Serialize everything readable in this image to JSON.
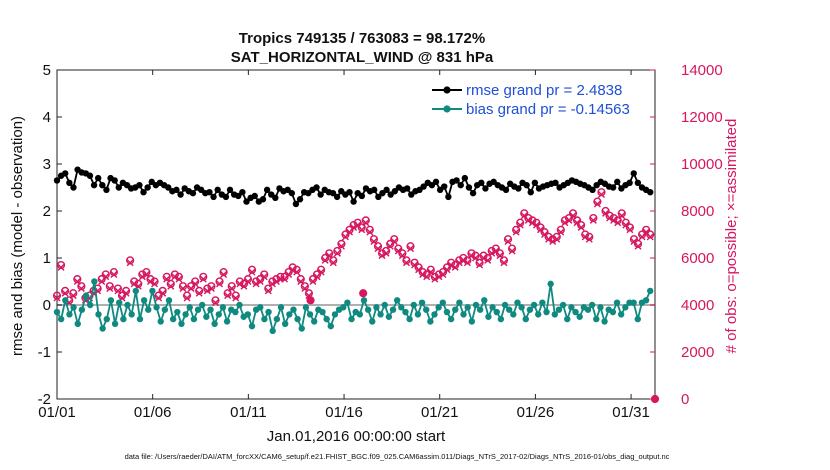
{
  "chart_data": {
    "type": "line",
    "title_line1": "Tropics 749135 / 763083 = 98.172%",
    "title_line2": "SAT_HORIZONTAL_WIND @ 831 hPa",
    "xlabel": "Jan.01,2016 00:00:00 start",
    "ylabel_left": "rmse and bias (model - observation)",
    "ylabel_right": "# of obs: o=possible; ×=assimilated",
    "footer": "data file: /Users/raeder/DAI/ATM_forcXX/CAM6_setup/f.e21.FHIST_BGC.f09_025.CAM6assim.011/Diags_NTrS_2017-02/Diags_NTrS_2016-01/obs_diag_output.nc",
    "x_tick_labels": [
      "01/01",
      "01/06",
      "01/11",
      "01/16",
      "01/21",
      "01/26",
      "01/31"
    ],
    "x_tick_days": [
      0,
      5,
      10,
      15,
      20,
      25,
      30
    ],
    "xlim": [
      0,
      31.25
    ],
    "ylim_left": [
      -2,
      5
    ],
    "left_ticks": [
      "-2",
      "-1",
      "0",
      "1",
      "2",
      "3",
      "4",
      "5"
    ],
    "ylim_right": [
      0,
      14000
    ],
    "right_ticks": [
      "0",
      "2000",
      "4000",
      "6000",
      "8000",
      "10000",
      "12000",
      "14000"
    ],
    "legend": {
      "rmse": "rmse grand pr = 2.4838",
      "bias": "bias grand pr = -0.14563"
    },
    "colors": {
      "rmse": "#000000",
      "bias": "#0f8a80",
      "obs": "#d6175f",
      "zero_line": "#b0b0b0"
    },
    "series": [
      {
        "name": "rmse",
        "values": [
          2.65,
          2.75,
          2.8,
          2.6,
          2.5,
          2.88,
          2.82,
          2.8,
          2.75,
          2.55,
          2.7,
          2.55,
          2.45,
          2.7,
          2.65,
          2.5,
          2.6,
          2.55,
          2.48,
          2.5,
          2.55,
          2.4,
          2.5,
          2.62,
          2.55,
          2.6,
          2.55,
          2.5,
          2.42,
          2.45,
          2.35,
          2.48,
          2.42,
          2.38,
          2.5,
          2.45,
          2.38,
          2.4,
          2.3,
          2.45,
          2.35,
          2.3,
          2.45,
          2.35,
          2.32,
          2.4,
          2.2,
          2.28,
          2.32,
          2.2,
          2.25,
          2.45,
          2.35,
          2.28,
          2.48,
          2.42,
          2.45,
          2.38,
          2.15,
          2.25,
          2.4,
          2.38,
          2.45,
          2.5,
          2.35,
          2.45,
          2.4,
          2.38,
          2.3,
          2.42,
          2.35,
          2.4,
          2.2,
          2.38,
          2.32,
          2.48,
          2.42,
          2.45,
          2.3,
          2.38,
          2.45,
          2.35,
          2.42,
          2.5,
          2.45,
          2.48,
          2.35,
          2.42,
          2.45,
          2.52,
          2.6,
          2.55,
          2.62,
          2.45,
          2.52,
          2.3,
          2.62,
          2.65,
          2.55,
          2.7,
          2.5,
          2.38,
          2.55,
          2.6,
          2.48,
          2.58,
          2.62,
          2.55,
          2.5,
          2.45,
          2.58,
          2.52,
          2.48,
          2.6,
          2.55,
          2.4,
          2.6,
          2.48,
          2.52,
          2.55,
          2.58,
          2.6,
          2.5,
          2.55,
          2.6,
          2.65,
          2.62,
          2.58,
          2.55,
          2.5,
          2.45,
          2.55,
          2.62,
          2.58,
          2.52,
          2.5,
          2.62,
          2.48,
          2.55,
          2.6,
          2.8,
          2.6,
          2.5,
          2.45,
          2.4
        ]
      },
      {
        "name": "bias",
        "values": [
          -0.15,
          -0.3,
          0.1,
          -0.2,
          -0.05,
          -0.4,
          -0.1,
          0.2,
          0.0,
          0.5,
          -0.2,
          -0.5,
          -0.3,
          0.1,
          -0.4,
          0.05,
          -0.3,
          0.0,
          -0.2,
          0.3,
          -0.3,
          0.1,
          -0.1,
          0.3,
          -0.05,
          -0.35,
          -0.1,
          0.1,
          -0.3,
          -0.15,
          -0.4,
          -0.2,
          -0.05,
          -0.3,
          -0.1,
          0.0,
          -0.25,
          -0.1,
          -0.4,
          -0.2,
          -0.05,
          -0.35,
          -0.1,
          -0.15,
          0.0,
          -0.25,
          -0.2,
          -0.45,
          -0.1,
          -0.05,
          -0.3,
          -0.15,
          -0.55,
          -0.3,
          -0.05,
          -0.4,
          -0.2,
          -0.1,
          -0.3,
          -0.5,
          -0.05,
          -0.2,
          -0.35,
          -0.1,
          -0.15,
          -0.3,
          -0.45,
          -0.2,
          -0.1,
          -0.05,
          0.05,
          -0.3,
          -0.15,
          -0.2,
          0.1,
          -0.1,
          -0.35,
          -0.05,
          -0.2,
          0.0,
          -0.25,
          -0.1,
          0.1,
          -0.05,
          -0.15,
          -0.3,
          0.0,
          -0.2,
          0.05,
          -0.1,
          -0.35,
          -0.2,
          -0.05,
          0.05,
          -0.15,
          -0.3,
          -0.1,
          0.05,
          -0.2,
          -0.05,
          -0.35,
          0.0,
          -0.1,
          0.1,
          -0.25,
          -0.05,
          -0.15,
          -0.3,
          0.0,
          -0.1,
          -0.2,
          0.05,
          -0.05,
          -0.3,
          -0.1,
          0.0,
          -0.2,
          0.05,
          -0.15,
          0.45,
          -0.2,
          -0.1,
          0.0,
          -0.3,
          -0.05,
          -0.15,
          -0.25,
          -0.05,
          -0.1,
          0.0,
          -0.3,
          -0.05,
          -0.35,
          -0.1,
          -0.15,
          0.05,
          -0.2,
          -0.05,
          0.05,
          0.05,
          -0.3,
          0.05,
          0.1,
          0.3
        ]
      },
      {
        "name": "obs_possible",
        "values": [
          4400,
          5700,
          4600,
          4200,
          4500,
          5100,
          4800,
          4300,
          4400,
          4600,
          4700,
          5100,
          5300,
          4800,
          5400,
          4700,
          4400,
          4600,
          5900,
          5000,
          4900,
          5300,
          5400,
          5100,
          5000,
          4400,
          4600,
          5200,
          4900,
          5300,
          5200,
          4800,
          4400,
          4800,
          5000,
          4600,
          5200,
          4700,
          4800,
          4200,
          5000,
          5400,
          4500,
          4800,
          4400,
          5000,
          4900,
          5100,
          5500,
          5000,
          5100,
          5300,
          4700,
          5000,
          5100,
          5200,
          5200,
          5400,
          5600,
          5500,
          5100,
          4800,
          4500,
          5100,
          5300,
          5500,
          6000,
          6200,
          5900,
          6300,
          6600,
          7000,
          7200,
          7400,
          7500,
          7300,
          7600,
          7200,
          6800,
          6500,
          6200,
          6300,
          6600,
          6800,
          6400,
          6200,
          5900,
          6500,
          5800,
          5600,
          5400,
          5300,
          5500,
          5200,
          5300,
          5400,
          5600,
          5800,
          5700,
          5900,
          6000,
          5900,
          6200,
          6100,
          5800,
          6100,
          6000,
          6300,
          6400,
          6200,
          5900,
          6800,
          6400,
          7200,
          7500,
          7900,
          7700,
          7600,
          7500,
          7300,
          7100,
          6900,
          6800,
          6900,
          7200,
          7600,
          7700,
          7900,
          7600,
          7400,
          7000,
          6900,
          7700,
          8400,
          8800,
          8000,
          7800,
          7700,
          7600,
          7900,
          7500,
          7300,
          6800,
          6600,
          7000,
          7200,
          7000
        ]
      },
      {
        "name": "obs_assimilated",
        "values": [
          4300,
          5600,
          4500,
          4100,
          4400,
          5000,
          4700,
          4200,
          4300,
          4500,
          4600,
          5000,
          5200,
          4700,
          5300,
          4600,
          4300,
          4500,
          5800,
          4900,
          4800,
          5200,
          5300,
          5000,
          4900,
          4300,
          4500,
          5100,
          4800,
          5200,
          5100,
          4700,
          4300,
          4700,
          4900,
          4500,
          5100,
          4600,
          4700,
          4100,
          4900,
          5300,
          4400,
          4700,
          4300,
          4900,
          4800,
          5000,
          5400,
          4900,
          5000,
          5200,
          4600,
          4900,
          5000,
          5100,
          5100,
          5300,
          5500,
          5400,
          5000,
          4700,
          4400,
          5000,
          5200,
          5400,
          5900,
          6100,
          5800,
          6200,
          6500,
          6900,
          7100,
          7300,
          7400,
          7200,
          7500,
          7100,
          6700,
          6400,
          6100,
          6200,
          6500,
          6700,
          6300,
          6100,
          5800,
          6400,
          5700,
          5500,
          5300,
          5200,
          5400,
          5100,
          5200,
          5300,
          5500,
          5700,
          5600,
          5800,
          5900,
          5800,
          6100,
          6000,
          5700,
          6000,
          5900,
          6200,
          6300,
          6100,
          5800,
          6700,
          6300,
          7100,
          7400,
          7800,
          7600,
          7500,
          7400,
          7200,
          7000,
          6800,
          6700,
          6800,
          7100,
          7500,
          7600,
          7800,
          7500,
          7300,
          6900,
          6800,
          7600,
          8300,
          8700,
          7900,
          7700,
          7600,
          7500,
          7800,
          7400,
          7200,
          6700,
          6500,
          6900,
          7100,
          6900
        ]
      }
    ],
    "outlier_points": [
      {
        "series": "obs_possible",
        "day": 31.25,
        "value": 0
      },
      {
        "series": "obs_possible",
        "day": 13.25,
        "value": 4200
      },
      {
        "series": "obs_possible",
        "day": 16.0,
        "value": 4500
      }
    ]
  }
}
